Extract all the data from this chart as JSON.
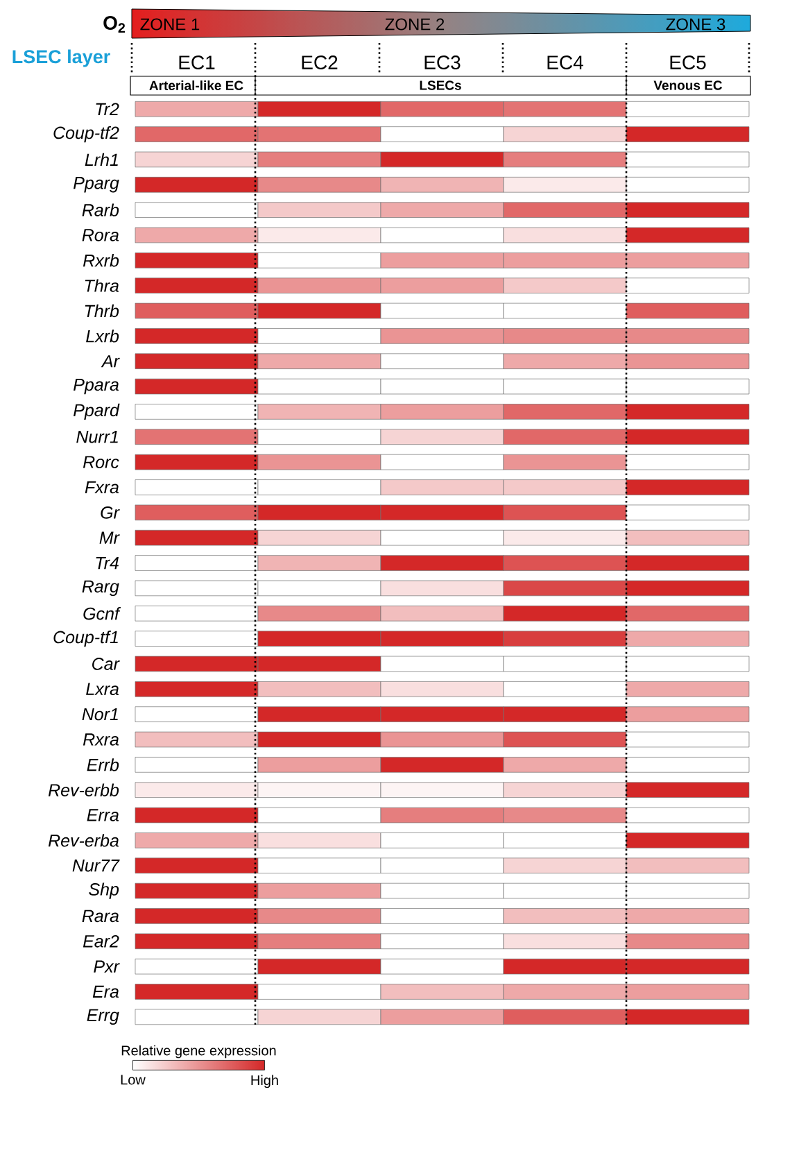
{
  "chart_data": {
    "type": "heatmap",
    "categories": [
      "EC1",
      "EC2",
      "EC3",
      "EC4",
      "EC5"
    ],
    "y_categories": [
      "Tr2",
      "Coup-tf2",
      "Lrh1",
      "Pparg",
      "Rarb",
      "Rora",
      "Rxrb",
      "Thra",
      "Thrb",
      "Lxrb",
      "Ar",
      "Ppara",
      "Ppard",
      "Nurr1",
      "Rorc",
      "Fxra",
      "Gr",
      "Mr",
      "Tr4",
      "Rarg",
      "Gcnf",
      "Coup-tf1",
      "Car",
      "Lxra",
      "Nor1",
      "Rxra",
      "Errb",
      "Rev-erbb",
      "Erra",
      "Rev-erba",
      "Nur77",
      "Shp",
      "Rara",
      "Ear2",
      "Pxr",
      "Era",
      "Errg"
    ],
    "cells": [
      [
        0.4,
        1,
        0.7,
        0.65,
        0
      ],
      [
        0.7,
        0.65,
        0,
        0.2,
        1
      ],
      [
        0.2,
        0.6,
        1,
        0.6,
        0
      ],
      [
        1,
        0.55,
        0.35,
        0.1,
        0
      ],
      [
        0,
        0.25,
        0.4,
        0.7,
        1
      ],
      [
        0.4,
        0.1,
        0,
        0.15,
        1
      ],
      [
        1,
        0,
        0.45,
        0.45,
        0.45
      ],
      [
        1,
        0.5,
        0.45,
        0.25,
        0
      ],
      [
        0.75,
        1,
        0,
        0,
        0.75
      ],
      [
        1,
        0,
        0.5,
        0.55,
        0.55
      ],
      [
        1,
        0.4,
        0,
        0.4,
        0.5
      ],
      [
        1,
        0,
        0,
        0,
        0
      ],
      [
        0,
        0.35,
        0.45,
        0.7,
        1
      ],
      [
        0.65,
        0,
        0.2,
        0.7,
        1
      ],
      [
        1,
        0.5,
        0,
        0.5,
        0
      ],
      [
        0,
        0,
        0.25,
        0.25,
        1
      ],
      [
        0.75,
        1,
        1,
        0.8,
        0
      ],
      [
        1,
        0.2,
        0,
        0.1,
        0.3
      ],
      [
        0,
        0.35,
        1,
        0.8,
        1
      ],
      [
        0,
        0,
        0.15,
        0.85,
        1
      ],
      [
        0,
        0.55,
        0.3,
        1,
        0.7
      ],
      [
        0,
        1,
        1,
        0.9,
        0.4
      ],
      [
        1,
        1,
        0,
        0,
        0
      ],
      [
        1,
        0.3,
        0.15,
        0,
        0.4
      ],
      [
        0,
        1,
        1,
        1,
        0.45
      ],
      [
        0.3,
        1,
        0.5,
        0.8,
        0
      ],
      [
        0,
        0.45,
        1,
        0.4,
        0
      ],
      [
        0.1,
        0.05,
        0.05,
        0.2,
        1
      ],
      [
        1,
        0,
        0.6,
        0.55,
        0
      ],
      [
        0.4,
        0.15,
        0,
        0,
        1
      ],
      [
        1,
        0,
        0,
        0.2,
        0.3
      ],
      [
        1,
        0.45,
        0,
        0,
        0
      ],
      [
        1,
        0.55,
        0,
        0.3,
        0.4
      ],
      [
        1,
        0.6,
        0,
        0.15,
        0.55
      ],
      [
        0,
        1,
        0,
        1,
        1
      ],
      [
        1,
        0,
        0.3,
        0.4,
        0.45
      ],
      [
        0,
        0.2,
        0.45,
        0.75,
        1
      ]
    ],
    "clabel": "Relative gene expression",
    "clim": [
      0,
      1
    ],
    "cticks": [
      {
        "value": 0,
        "label": "Low"
      },
      {
        "value": 1,
        "label": "High"
      }
    ],
    "annotations": [
      "O$_{2}$",
      "ZONE 1",
      "ZONE 2",
      "ZONE 3",
      "LSEC layer",
      "Arterial-like EC",
      "LSECs",
      "Venous EC"
    ]
  }
}
